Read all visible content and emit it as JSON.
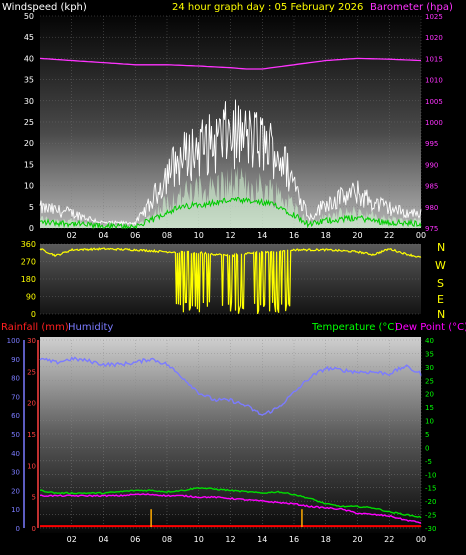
{
  "colors": {
    "wind": "#ffffff",
    "gust_fill": "#d8ffd8",
    "avg": "#00cc00",
    "baro": "#ff33ff",
    "dir": "#ffff00",
    "hum": "#7b7bff",
    "temp": "#00dd00",
    "dew": "#ff00ff",
    "rain": "#ff0000",
    "rain_bar": "#ffaa00",
    "title": "#ffff00",
    "axis_white": "#ffffff",
    "axis_baro": "#ff33ff",
    "axis_rain": "#ff4040",
    "axis_hum": "#7b7bff",
    "axis_temp": "#00ff00"
  },
  "header": {
    "wind_label": "Windspeed (kph)",
    "title": "24 hour graph day : 05 February 2026",
    "baro_label": "Barometer (hpa)",
    "rain_label": "Rainfall (mm)",
    "hum_label": "Humidity",
    "temp_label": "Temperature (°C)",
    "dew_label": "Dew Point (°C)"
  },
  "compass": [
    "N",
    "W",
    "S",
    "E",
    "N"
  ],
  "chart_data": [
    {
      "type": "line",
      "x_ticks": [
        "02",
        "04",
        "06",
        "08",
        "10",
        "12",
        "14",
        "16",
        "18",
        "20",
        "22",
        "00"
      ],
      "left_axis": {
        "ticks": [
          "0",
          "5",
          "10",
          "15",
          "20",
          "25",
          "30",
          "35",
          "40",
          "45",
          "50"
        ],
        "ylim": [
          0,
          50
        ]
      },
      "right_axis": {
        "ticks": [
          "975",
          "980",
          "985",
          "990",
          "995",
          "1000",
          "1005",
          "1010",
          "1015",
          "1020",
          "1025"
        ],
        "ylim": [
          975,
          1025
        ]
      },
      "series": [
        {
          "name": "Windspeed (kph)",
          "axis": "left",
          "x": [
            0,
            2,
            4,
            6,
            7,
            8,
            9,
            10,
            11,
            12,
            13,
            14,
            15,
            16,
            17,
            18,
            19,
            20,
            21,
            22,
            23,
            24
          ],
          "values": [
            4,
            3,
            1,
            1,
            5,
            11,
            14,
            16,
            17,
            19,
            18,
            17,
            15,
            9,
            2,
            5,
            6,
            7,
            5,
            4,
            3,
            3
          ]
        },
        {
          "name": "Barometer (hpa)",
          "axis": "right",
          "x": [
            0,
            2,
            4,
            6,
            8,
            10,
            12,
            13,
            14,
            16,
            18,
            20,
            22,
            24
          ],
          "values": [
            1015,
            1014.5,
            1014,
            1013.5,
            1013.5,
            1013.2,
            1012.8,
            1012.5,
            1012.5,
            1013.5,
            1014.5,
            1015,
            1014.8,
            1014.5
          ]
        }
      ]
    },
    {
      "type": "line",
      "x_ticks": [
        "02",
        "04",
        "06",
        "08",
        "10",
        "12",
        "14",
        "16",
        "18",
        "20",
        "22",
        "00"
      ],
      "left_axis": {
        "ticks": [
          "0",
          "90",
          "180",
          "270",
          "360"
        ],
        "ylim": [
          0,
          360
        ]
      },
      "series": [
        {
          "name": "Wind direction",
          "x": [
            0,
            1,
            2,
            4,
            6,
            7,
            8,
            10,
            12,
            14,
            16,
            18,
            20,
            21,
            22,
            23,
            24
          ],
          "values": [
            335,
            300,
            330,
            335,
            330,
            325,
            320,
            315,
            300,
            320,
            330,
            330,
            320,
            305,
            335,
            310,
            290
          ]
        }
      ]
    },
    {
      "type": "line",
      "x_ticks": [
        "02",
        "04",
        "06",
        "08",
        "10",
        "12",
        "14",
        "16",
        "18",
        "20",
        "22",
        "00"
      ],
      "rain_axis": {
        "ticks": [
          "0",
          "5",
          "10",
          "15",
          "20",
          "25",
          "30"
        ],
        "ylim": [
          0,
          30
        ]
      },
      "hum_axis": {
        "ticks": [
          "0",
          "10",
          "20",
          "30",
          "40",
          "50",
          "60",
          "70",
          "80",
          "90",
          "100"
        ],
        "ylim": [
          0,
          100
        ]
      },
      "temp_axis": {
        "ticks": [
          "-30",
          "-25",
          "-20",
          "-15",
          "-10",
          "-5",
          "0",
          "5",
          "10",
          "15",
          "20",
          "25",
          "30",
          "35",
          "40"
        ],
        "ylim": [
          -30,
          40
        ]
      },
      "series": [
        {
          "name": "Humidity",
          "axis": "hum",
          "x": [
            0,
            1,
            2,
            3,
            4,
            5,
            6,
            7,
            8,
            9,
            10,
            11,
            12,
            13,
            14,
            15,
            16,
            17,
            18,
            19,
            20,
            21,
            22,
            23,
            24
          ],
          "values": [
            90,
            88,
            90,
            89,
            87,
            87,
            88,
            90,
            87,
            80,
            72,
            68,
            68,
            65,
            60,
            64,
            72,
            80,
            85,
            84,
            83,
            83,
            82,
            86,
            82
          ]
        },
        {
          "name": "Temperature (°C)",
          "axis": "temp",
          "x": [
            0,
            1,
            2,
            3,
            4,
            5,
            6,
            7,
            8,
            9,
            10,
            11,
            12,
            13,
            14,
            15,
            16,
            17,
            18,
            19,
            20,
            21,
            22,
            23,
            24
          ],
          "values": [
            -16,
            -17,
            -17,
            -17,
            -17,
            -16.5,
            -16,
            -16,
            -16.5,
            -16,
            -15,
            -15.5,
            -16,
            -16.5,
            -17,
            -16.5,
            -17.5,
            -19,
            -21,
            -22,
            -22,
            -22.5,
            -24,
            -25,
            -26
          ]
        },
        {
          "name": "Dew Point (°C)",
          "axis": "temp",
          "x": [
            0,
            1,
            2,
            3,
            4,
            5,
            6,
            7,
            8,
            9,
            10,
            11,
            12,
            13,
            14,
            15,
            16,
            17,
            18,
            19,
            20,
            21,
            22,
            23,
            24
          ],
          "values": [
            -18,
            -18,
            -18,
            -18,
            -18,
            -18,
            -17.5,
            -17.5,
            -18,
            -18,
            -18.5,
            -18.5,
            -19,
            -19.5,
            -20,
            -20.5,
            -21,
            -22,
            -22.5,
            -23,
            -24.5,
            -25,
            -25.5,
            -27,
            -28
          ]
        },
        {
          "name": "Rainfall (mm)",
          "axis": "rain",
          "x": [
            0,
            24
          ],
          "values": [
            0.3,
            0.3
          ]
        }
      ],
      "rain_marks": {
        "x": [
          7,
          16.5
        ],
        "values": [
          3,
          3
        ]
      }
    }
  ]
}
